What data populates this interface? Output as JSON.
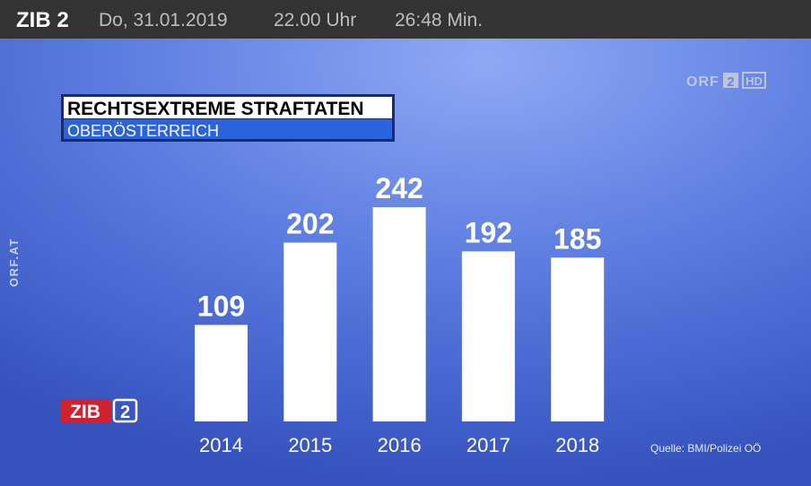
{
  "header": {
    "show": "ZIB 2",
    "date": "Do, 31.01.2019",
    "time": "22.00 Uhr",
    "duration": "26:48 Min."
  },
  "channel_logo": {
    "name": "ORF",
    "number": "2",
    "quality": "HD"
  },
  "side_label": "ORF.AT",
  "show_logo": {
    "name": "ZIB",
    "number": "2"
  },
  "chart_data": {
    "type": "bar",
    "title": "RECHTSEXTREME STRAFTATEN",
    "subtitle": "OBERÖSTERREICH",
    "categories": [
      "2014",
      "2015",
      "2016",
      "2017",
      "2018"
    ],
    "values": [
      109,
      202,
      242,
      192,
      185
    ],
    "color": "#ffffff",
    "source": "Quelle: BMI/Polizei OÖ"
  }
}
